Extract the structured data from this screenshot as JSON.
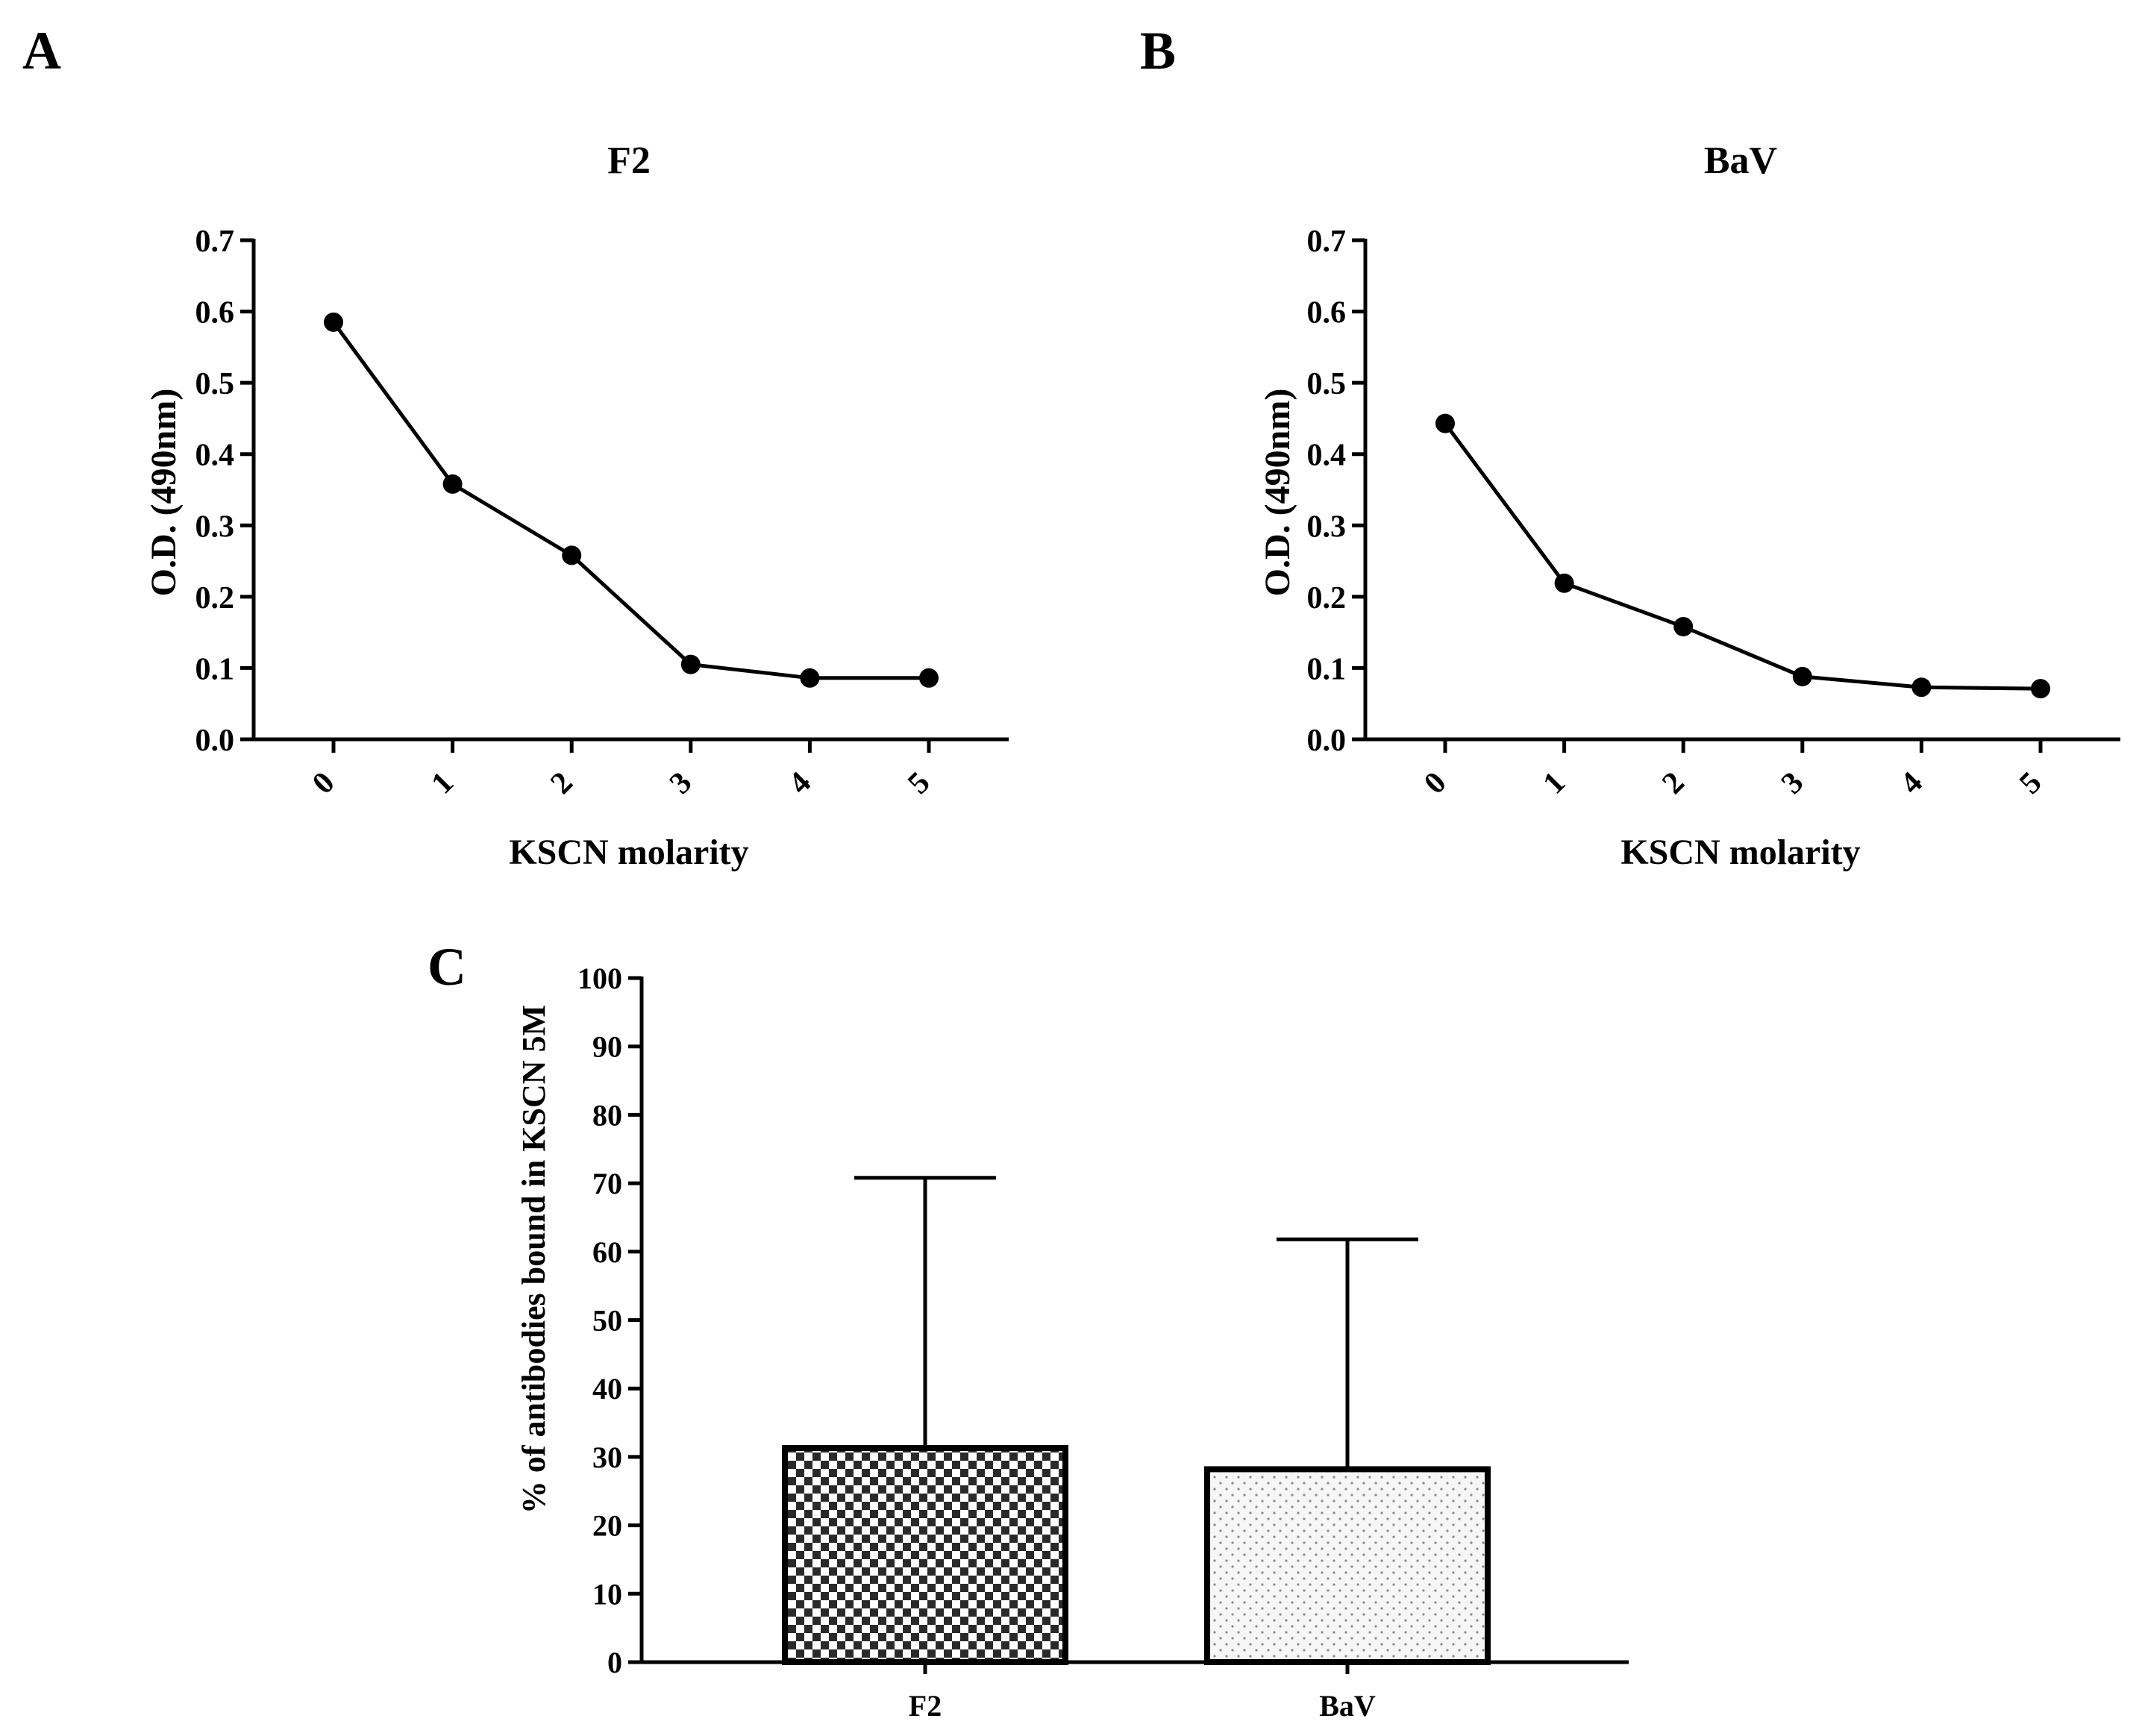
{
  "panels": {
    "A": {
      "letter": "A"
    },
    "B": {
      "letter": "B"
    },
    "C": {
      "letter": "C"
    }
  },
  "chart_data": [
    {
      "id": "A",
      "type": "line",
      "title": "F2",
      "xlabel": "KSCN molarity",
      "ylabel": "O.D. (490nm)",
      "categories": [
        "0",
        "1",
        "2",
        "3",
        "4",
        "5"
      ],
      "values": [
        0.585,
        0.358,
        0.258,
        0.105,
        0.086,
        0.086
      ],
      "ylim": [
        0,
        0.7
      ],
      "yticks": [
        "0.0",
        "0.1",
        "0.2",
        "0.3",
        "0.4",
        "0.5",
        "0.6",
        "0.7"
      ],
      "marker": "circle",
      "color": "#000000"
    },
    {
      "id": "B",
      "type": "line",
      "title": "BaV",
      "xlabel": "KSCN molarity",
      "ylabel": "O.D. (490nm)",
      "categories": [
        "0",
        "1",
        "2",
        "3",
        "4",
        "5"
      ],
      "values": [
        0.443,
        0.219,
        0.158,
        0.088,
        0.073,
        0.071
      ],
      "ylim": [
        0,
        0.7
      ],
      "yticks": [
        "0.0",
        "0.1",
        "0.2",
        "0.3",
        "0.4",
        "0.5",
        "0.6",
        "0.7"
      ],
      "marker": "circle",
      "color": "#000000"
    },
    {
      "id": "C",
      "type": "bar",
      "title": "",
      "xlabel": "",
      "ylabel": "% of antibodies bound in KSCN 5M",
      "categories": [
        "F2",
        "BaV"
      ],
      "values": [
        31.3,
        28.2
      ],
      "error_upper": [
        70.8,
        61.8
      ],
      "patterns": [
        "checker",
        "dots"
      ],
      "ylim": [
        0,
        100
      ],
      "yticks": [
        "0",
        "10",
        "20",
        "30",
        "40",
        "50",
        "60",
        "70",
        "80",
        "90",
        "100"
      ]
    }
  ]
}
